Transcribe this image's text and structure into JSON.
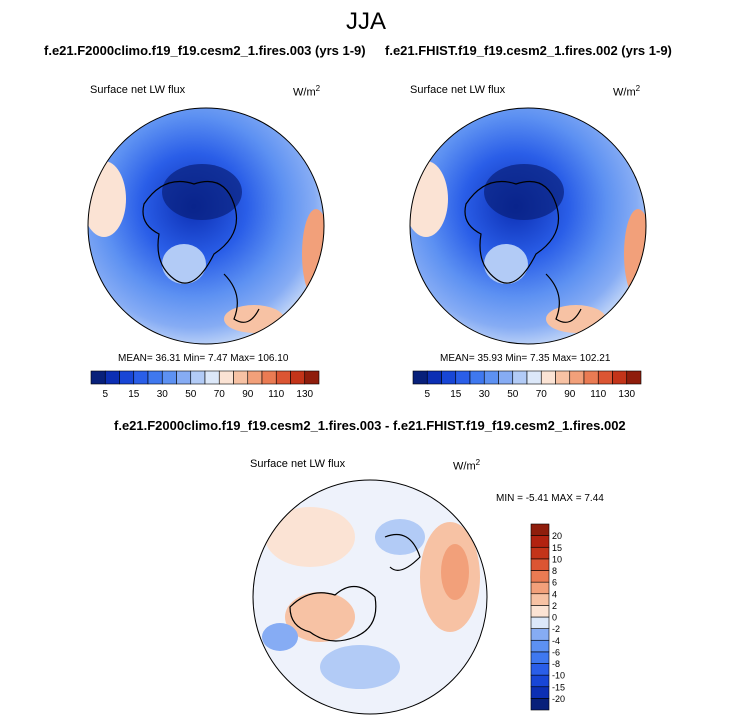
{
  "chart_data": [
    {
      "type": "heatmap",
      "projection": "north-polar-stereographic",
      "season": "JJA",
      "title": "f.e21.F2000climo.f19_f19.cesm2_1.fires.003 (yrs 1-9)",
      "variable": "Surface net LW flux",
      "units_base": "W/m",
      "units_exp": "2",
      "stats_text": "MEAN=  36.31  Min=  7.47  Max= 106.10",
      "mean": 36.31,
      "min": 7.47,
      "max": 106.1,
      "colorbar": {
        "orientation": "horizontal",
        "levels": [
          5,
          10,
          15,
          20,
          30,
          40,
          50,
          60,
          70,
          80,
          90,
          100,
          110,
          120,
          130
        ],
        "tick_labels": [
          "5",
          "15",
          "30",
          "50",
          "70",
          "90",
          "110",
          "130"
        ],
        "colors": [
          "#08207a",
          "#0c2fb4",
          "#1846d6",
          "#2a5ee8",
          "#3f78ef",
          "#5d91f2",
          "#86acf4",
          "#b2cbf6",
          "#dce8f9",
          "#fbe3d4",
          "#f7c2a4",
          "#f2a07a",
          "#ea7b53",
          "#db5533",
          "#c33419",
          "#8f1d0c"
        ]
      }
    },
    {
      "type": "heatmap",
      "projection": "north-polar-stereographic",
      "season": "JJA",
      "title": "f.e21.FHIST.f19_f19.cesm2_1.fires.002 (yrs 1-9)",
      "variable": "Surface net LW flux",
      "units_base": "W/m",
      "units_exp": "2",
      "stats_text": "MEAN=  35.93  Min=  7.35  Max= 102.21",
      "mean": 35.93,
      "min": 7.35,
      "max": 102.21,
      "colorbar": {
        "orientation": "horizontal",
        "levels": [
          5,
          10,
          15,
          20,
          30,
          40,
          50,
          60,
          70,
          80,
          90,
          100,
          110,
          120,
          130
        ],
        "tick_labels": [
          "5",
          "15",
          "30",
          "50",
          "70",
          "90",
          "110",
          "130"
        ],
        "colors": [
          "#08207a",
          "#0c2fb4",
          "#1846d6",
          "#2a5ee8",
          "#3f78ef",
          "#5d91f2",
          "#86acf4",
          "#b2cbf6",
          "#dce8f9",
          "#fbe3d4",
          "#f7c2a4",
          "#f2a07a",
          "#ea7b53",
          "#db5533",
          "#c33419",
          "#8f1d0c"
        ]
      }
    },
    {
      "type": "heatmap",
      "projection": "north-polar-stereographic",
      "season": "JJA",
      "title": "f.e21.F2000climo.f19_f19.cesm2_1.fires.003 - f.e21.FHIST.f19_f19.cesm2_1.fires.002",
      "variable": "Surface net LW flux",
      "units_base": "W/m",
      "units_exp": "2",
      "stats_text": "MIN =  -5.41 MAX =   7.44",
      "min": -5.41,
      "max": 7.44,
      "colorbar": {
        "orientation": "vertical",
        "levels": [
          -20,
          -15,
          -10,
          -8,
          -6,
          -4,
          -2,
          0,
          2,
          4,
          6,
          8,
          10,
          15,
          20
        ],
        "tick_labels": [
          "-20",
          "-15",
          "-10",
          "-8",
          "-6",
          "-4",
          "-2",
          "0",
          "2",
          "4",
          "6",
          "8",
          "10",
          "15",
          "20"
        ],
        "colors": [
          "#08207a",
          "#0c2fb4",
          "#1846d6",
          "#2a5ee8",
          "#3f78ef",
          "#5d91f2",
          "#86acf4",
          "#dce8f9",
          "#fbe3d4",
          "#f7c2a4",
          "#f2a07a",
          "#ea7b53",
          "#db5533",
          "#c33419",
          "#b22210",
          "#8f1d0c"
        ]
      }
    }
  ],
  "page": {
    "main_title": "JJA"
  }
}
